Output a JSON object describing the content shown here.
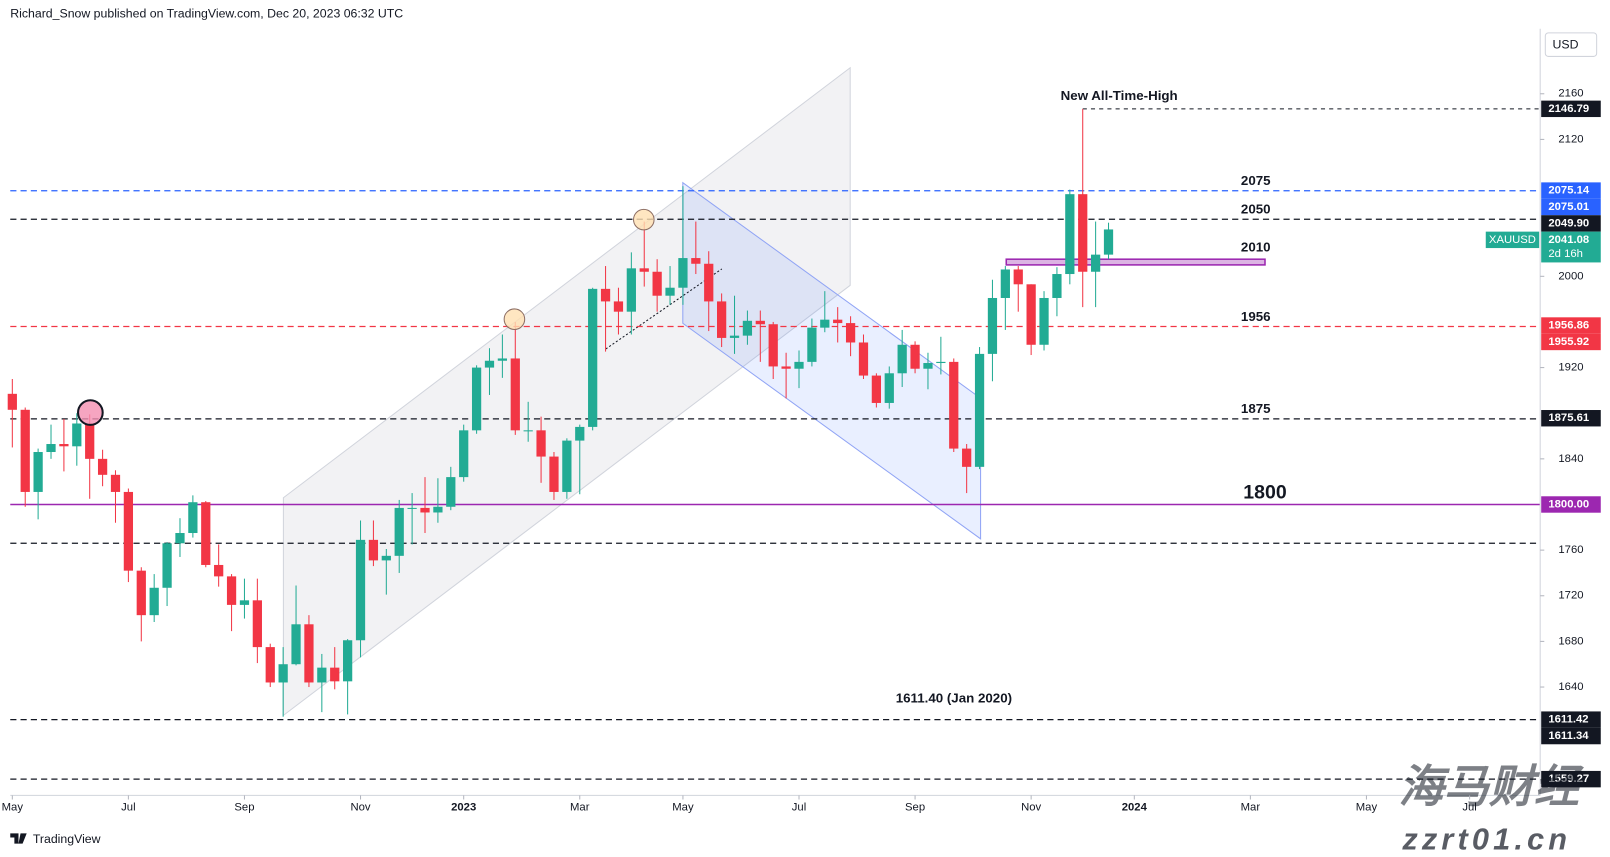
{
  "header": "Richard_Snow published on TradingView.com, Dec 20, 2023 06:32 UTC",
  "chart_data": {
    "type": "candlestick",
    "currency": "USD",
    "symbol": "XAUUSD",
    "categories": [
      "May",
      null,
      null,
      null,
      null,
      null,
      null,
      null,
      null,
      "Jul",
      null,
      null,
      null,
      null,
      null,
      null,
      null,
      null,
      "Sep",
      null,
      null,
      null,
      null,
      null,
      null,
      null,
      null,
      "Nov",
      null,
      null,
      null,
      null,
      null,
      null,
      null,
      "2023",
      null,
      null,
      null,
      null,
      null,
      null,
      null,
      null,
      "Mar",
      null,
      null,
      null,
      null,
      null,
      null,
      null,
      "May",
      null,
      null,
      null,
      null,
      null,
      null,
      null,
      null,
      "Jul",
      null,
      null,
      null,
      null,
      null,
      null,
      null,
      null,
      "Sep",
      null,
      null,
      null,
      null,
      null,
      null,
      null,
      null,
      "Nov",
      null,
      null,
      null,
      null,
      null,
      null,
      null,
      "2024",
      null,
      null,
      null,
      null,
      null,
      null,
      null,
      null,
      "Mar",
      null,
      null,
      null,
      null,
      null,
      null,
      null,
      null,
      "May",
      null,
      null,
      null,
      null,
      null,
      null,
      null,
      "Jul"
    ],
    "open": [
      1897,
      1883,
      1811,
      1846,
      1853,
      1851,
      1871,
      1840,
      1826,
      1811,
      1742,
      1703,
      1727,
      1766,
      1775,
      1802,
      1747,
      1737,
      1712,
      1716,
      1675,
      1644,
      1660,
      1695,
      1644,
      1657,
      1645,
      1681,
      1769,
      1751,
      1755,
      1797,
      1797,
      1793,
      1798,
      1824,
      1865,
      1920,
      1926,
      1928,
      1865,
      1865,
      1842,
      1811,
      1856,
      1868,
      1989,
      1978,
      1969,
      2007,
      2004,
      1983,
      1990,
      2016,
      2011,
      1978,
      1946,
      1948,
      1961,
      1958,
      1921,
      1919,
      1925,
      1955,
      1962,
      1959,
      1942,
      1913,
      1889,
      1915,
      1940,
      1919,
      1924,
      1925,
      1849,
      1833,
      1932,
      1981,
      2006,
      1993,
      1940,
      1981,
      2002,
      2072,
      2004,
      2019,
      null,
      null,
      null,
      null,
      null,
      null,
      null,
      null,
      null,
      null,
      null,
      null,
      null,
      null,
      null,
      null,
      null,
      null,
      null,
      null,
      null,
      null,
      null,
      null,
      null,
      null,
      null,
      null
    ],
    "high": [
      1910,
      1885,
      1849,
      1870,
      1875,
      1880,
      1879,
      1848,
      1830,
      1814,
      1745,
      1739,
      1767,
      1788,
      1808,
      1803,
      1765,
      1739,
      1735,
      1735,
      1678,
      1675,
      1729,
      1703,
      1669,
      1675,
      1682,
      1786,
      1786,
      1761,
      1804,
      1810,
      1824,
      1823,
      1833,
      1870,
      1922,
      1937,
      1949,
      1960,
      1890,
      1877,
      1846,
      1858,
      1870,
      1990,
      2009,
      1990,
      2021,
      2048,
      2015,
      2009,
      2079,
      2048,
      2022,
      1985,
      1983,
      1970,
      1970,
      1960,
      1933,
      1935,
      1963,
      1987,
      1973,
      1965,
      1949,
      1915,
      1921,
      1953,
      1943,
      1933,
      1947,
      1928,
      1853,
      1938,
      1997,
      2009,
      2009,
      1993,
      1987,
      2008,
      2076,
      2146.79,
      2048,
      2047,
      null,
      null,
      null,
      null,
      null,
      null,
      null,
      null,
      null,
      null,
      null,
      null,
      null,
      null,
      null,
      null,
      null,
      null,
      null,
      null,
      null,
      null,
      null,
      null,
      null,
      null,
      null,
      null
    ],
    "low": [
      1850,
      1798,
      1787,
      1840,
      1829,
      1834,
      1805,
      1816,
      1784,
      1732,
      1680,
      1697,
      1711,
      1754,
      1771,
      1745,
      1728,
      1689,
      1700,
      1661,
      1640,
      1614,
      1659,
      1640,
      1618,
      1638,
      1616,
      1666,
      1746,
      1721,
      1740,
      1765,
      1775,
      1784,
      1795,
      1820,
      1862,
      1896,
      1911,
      1861,
      1855,
      1819,
      1804,
      1805,
      1809,
      1865,
      1934,
      1949,
      1949,
      1991,
      1969,
      1975,
      1975,
      2002,
      1952,
      1938,
      1932,
      1940,
      1925,
      1910,
      1893,
      1902,
      1921,
      1951,
      1942,
      1930,
      1910,
      1885,
      1884,
      1903,
      1915,
      1901,
      1914,
      1846,
      1810,
      1831,
      1908,
      1953,
      1969,
      1931,
      1935,
      1965,
      1993,
      1973,
      1973,
      2015,
      null,
      null,
      null,
      null,
      null,
      null,
      null,
      null,
      null,
      null,
      null,
      null,
      null,
      null,
      null,
      null,
      null,
      null,
      null,
      null,
      null,
      null,
      null,
      null,
      null,
      null,
      null,
      null
    ],
    "close": [
      1883,
      1811,
      1846,
      1853,
      1851,
      1871,
      1840,
      1826,
      1811,
      1742,
      1703,
      1727,
      1766,
      1775,
      1802,
      1747,
      1737,
      1712,
      1716,
      1675,
      1644,
      1660,
      1695,
      1644,
      1657,
      1645,
      1681,
      1769,
      1751,
      1755,
      1797,
      1797,
      1793,
      1798,
      1824,
      1865,
      1920,
      1926,
      1928,
      1865,
      1865,
      1842,
      1811,
      1856,
      1868,
      1989,
      1978,
      1969,
      2007,
      2004,
      1983,
      1990,
      2016,
      2011,
      1978,
      1946,
      1948,
      1961,
      1958,
      1921,
      1919,
      1925,
      1955,
      1962,
      1959,
      1942,
      1913,
      1889,
      1915,
      1940,
      1919,
      1924,
      1925,
      1849,
      1833,
      1932,
      1981,
      2006,
      1993,
      1940,
      1981,
      2002,
      2072,
      2004,
      2019,
      2041.08,
      null,
      null,
      null,
      null,
      null,
      null,
      null,
      null,
      null,
      null,
      null,
      null,
      null,
      null,
      null,
      null,
      null,
      null,
      null,
      null,
      null,
      null,
      null,
      null,
      null,
      null,
      null,
      null
    ],
    "up_color": "#22ab94",
    "down_color": "#f23645",
    "ylim": [
      1545,
      2217
    ],
    "yticks": [
      2160,
      2120,
      2000,
      1920,
      1840,
      1760,
      1720,
      1680,
      1640
    ],
    "ath": {
      "label": "New All-Time-High",
      "value": 2146.79,
      "color": "#131722"
    },
    "levels": [
      {
        "label": "2075",
        "value": 2075,
        "color": "#2962ff",
        "style": "dashed"
      },
      {
        "label": "2050",
        "value": 2050,
        "color": "#131722",
        "style": "dashed"
      },
      {
        "label": "2010",
        "value": 2010,
        "top": 2015,
        "color": "#9c27b0",
        "style": "zone"
      },
      {
        "label": "1956",
        "value": 1956,
        "color": "#f23645",
        "style": "dashed"
      },
      {
        "label": "1875",
        "value": 1875,
        "color": "#131722",
        "style": "dashed"
      },
      {
        "label": "1800",
        "value": 1800,
        "color": "#9c27b0",
        "style": "solid"
      },
      {
        "value": 1766,
        "color": "#131722",
        "style": "dashed"
      },
      {
        "label": "1611.40 (Jan 2020)",
        "value": 1611.4,
        "color": "#131722",
        "style": "dashed"
      },
      {
        "value": 1559.27,
        "color": "#131722",
        "style": "dashed"
      }
    ],
    "price_tags": [
      {
        "value": 2146.79,
        "label": "2146.79",
        "color": "#131722"
      },
      {
        "value": 2075.14,
        "label": "2075.14",
        "color": "#2962ff"
      },
      {
        "value": 2075.01,
        "label": "2075.01",
        "color": "#2962ff"
      },
      {
        "value": 2049.9,
        "label": "2049.90",
        "color": "#131722"
      },
      {
        "value": 1956.86,
        "label": "1956.86",
        "color": "#f23645"
      },
      {
        "value": 1955.92,
        "label": "1955.92",
        "color": "#f23645"
      },
      {
        "value": 1875.61,
        "label": "1875.61",
        "color": "#131722"
      },
      {
        "value": 1800,
        "label": "1800.00",
        "color": "#9c27b0"
      },
      {
        "value": 1611.42,
        "label": "1611.42",
        "color": "#131722"
      },
      {
        "value": 1611.34,
        "label": "1611.34",
        "color": "#131722"
      },
      {
        "value": 1559.27,
        "label": "1559.27",
        "color": "#131722"
      }
    ],
    "last_price": {
      "value": 2041.08,
      "countdown": "2d 16h",
      "color": "#22ab94"
    }
  },
  "footer": "TradingView",
  "watermark": {
    "brand": "海马财经",
    "site": "zzrt01.cn"
  }
}
